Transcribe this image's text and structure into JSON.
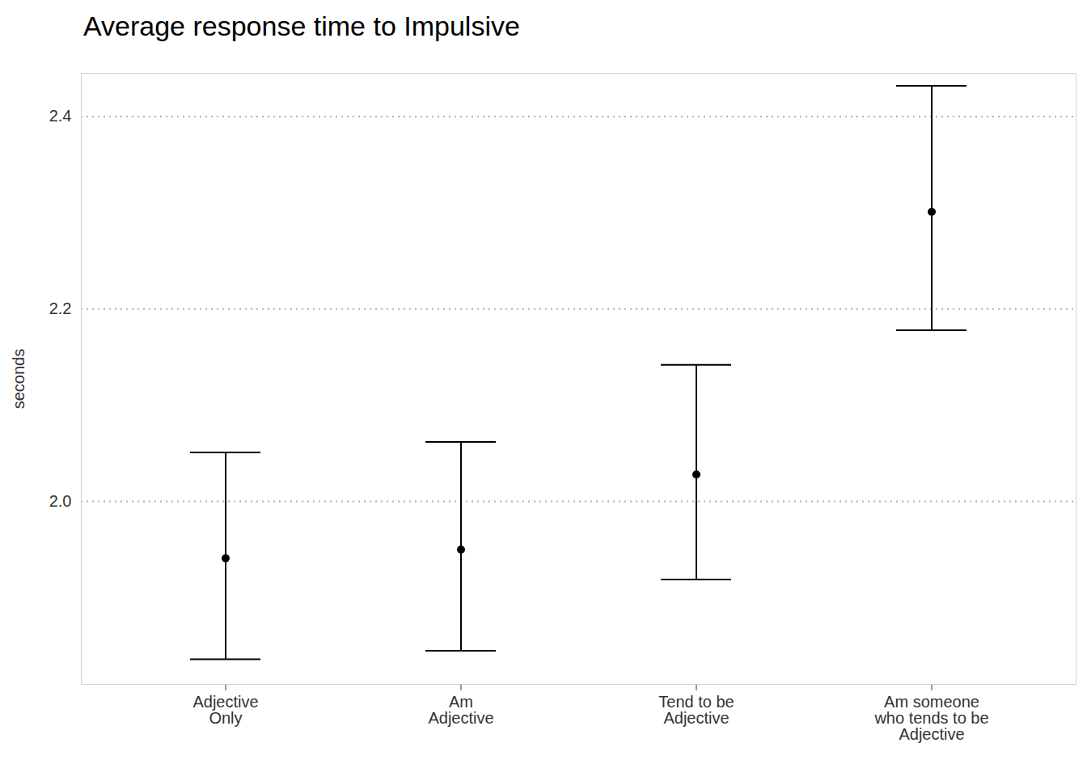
{
  "chart_data": {
    "type": "errorbar",
    "title": "Average response time to Impulsive",
    "ylabel": "seconds",
    "categories": [
      "Adjective\nOnly",
      "Am\nAdjective",
      "Tend to be\nAdjective",
      "Am someone\nwho tends to be\nAdjective"
    ],
    "values": [
      1.941,
      1.95,
      2.028,
      2.301
    ],
    "lower": [
      1.836,
      1.845,
      1.919,
      2.178
    ],
    "upper": [
      2.051,
      2.062,
      2.142,
      2.432
    ],
    "color": "#000000",
    "ylim": [
      1.81,
      2.445
    ],
    "yticks": [
      {
        "value": 2.0,
        "label": "2.0"
      },
      {
        "value": 2.2,
        "label": "2.2"
      },
      {
        "value": 2.4,
        "label": "2.4"
      }
    ],
    "grid": true
  }
}
